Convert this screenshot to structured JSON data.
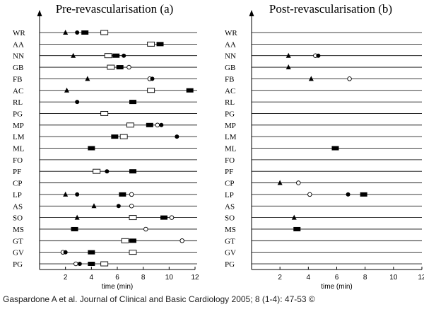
{
  "citation": "Gaspardone A et al. Journal of Clinical and Basic Cardiology 2005; 8 (1-4): 47-53 ©",
  "chart_data": [
    {
      "type": "scatter",
      "title": "Pre-revascularisation (a)",
      "xlabel": "time (min)",
      "xlim": [
        0,
        12
      ],
      "xticks": [
        2,
        4,
        6,
        8,
        10,
        12
      ],
      "marker_kinds": [
        "filled-triangle",
        "filled-circle",
        "open-circle",
        "filled-rectangle",
        "open-rectangle"
      ],
      "rows": [
        {
          "label": "WR",
          "markers": [
            {
              "kind": "filled-triangle",
              "x": 2.0
            },
            {
              "kind": "filled-circle",
              "x": 2.9
            },
            {
              "kind": "filled-rectangle",
              "x": 3.5
            },
            {
              "kind": "open-rectangle",
              "x": 5.0
            }
          ]
        },
        {
          "label": "AA",
          "markers": [
            {
              "kind": "open-rectangle",
              "x": 8.6
            },
            {
              "kind": "filled-rectangle",
              "x": 9.3
            }
          ]
        },
        {
          "label": "NN",
          "markers": [
            {
              "kind": "filled-triangle",
              "x": 2.6
            },
            {
              "kind": "open-rectangle",
              "x": 5.3
            },
            {
              "kind": "filled-rectangle",
              "x": 5.9
            },
            {
              "kind": "filled-circle",
              "x": 6.5
            }
          ]
        },
        {
          "label": "GB",
          "markers": [
            {
              "kind": "open-rectangle",
              "x": 5.5
            },
            {
              "kind": "filled-rectangle",
              "x": 6.2
            },
            {
              "kind": "open-circle",
              "x": 6.9
            }
          ]
        },
        {
          "label": "FB",
          "markers": [
            {
              "kind": "filled-triangle",
              "x": 3.7
            },
            {
              "kind": "open-circle",
              "x": 8.5
            },
            {
              "kind": "filled-circle",
              "x": 8.7
            }
          ]
        },
        {
          "label": "AC",
          "markers": [
            {
              "kind": "filled-triangle",
              "x": 2.1
            },
            {
              "kind": "open-rectangle",
              "x": 8.6
            },
            {
              "kind": "filled-rectangle",
              "x": 11.6
            }
          ]
        },
        {
          "label": "RL",
          "markers": [
            {
              "kind": "filled-circle",
              "x": 2.9
            },
            {
              "kind": "filled-rectangle",
              "x": 7.2
            }
          ]
        },
        {
          "label": "PG",
          "markers": [
            {
              "kind": "open-rectangle",
              "x": 5.0
            }
          ]
        },
        {
          "label": "MP",
          "markers": [
            {
              "kind": "open-rectangle",
              "x": 7.0
            },
            {
              "kind": "filled-rectangle",
              "x": 8.5
            },
            {
              "kind": "open-circle",
              "x": 9.1
            },
            {
              "kind": "filled-circle",
              "x": 9.4
            }
          ]
        },
        {
          "label": "LM",
          "markers": [
            {
              "kind": "filled-rectangle",
              "x": 5.8
            },
            {
              "kind": "open-rectangle",
              "x": 6.5
            },
            {
              "kind": "filled-circle",
              "x": 10.6
            }
          ]
        },
        {
          "label": "ML",
          "markers": [
            {
              "kind": "filled-rectangle",
              "x": 4.0
            }
          ]
        },
        {
          "label": "FO",
          "markers": []
        },
        {
          "label": "PF",
          "markers": [
            {
              "kind": "open-rectangle",
              "x": 4.4
            },
            {
              "kind": "filled-circle",
              "x": 5.2
            },
            {
              "kind": "filled-rectangle",
              "x": 7.2
            }
          ]
        },
        {
          "label": "CP",
          "markers": []
        },
        {
          "label": "LP",
          "markers": [
            {
              "kind": "filled-triangle",
              "x": 2.0
            },
            {
              "kind": "filled-circle",
              "x": 2.9
            },
            {
              "kind": "filled-rectangle",
              "x": 6.4
            },
            {
              "kind": "open-circle",
              "x": 7.1
            }
          ]
        },
        {
          "label": "AS",
          "markers": [
            {
              "kind": "filled-triangle",
              "x": 4.2
            },
            {
              "kind": "filled-circle",
              "x": 6.1
            },
            {
              "kind": "open-circle",
              "x": 7.1
            }
          ]
        },
        {
          "label": "SO",
          "markers": [
            {
              "kind": "filled-triangle",
              "x": 2.9
            },
            {
              "kind": "open-rectangle",
              "x": 7.2
            },
            {
              "kind": "filled-rectangle",
              "x": 9.6
            },
            {
              "kind": "open-circle",
              "x": 10.2
            }
          ]
        },
        {
          "label": "MS",
          "markers": [
            {
              "kind": "filled-rectangle",
              "x": 2.7
            },
            {
              "kind": "open-circle",
              "x": 8.2
            }
          ]
        },
        {
          "label": "GT",
          "markers": [
            {
              "kind": "open-rectangle",
              "x": 6.6
            },
            {
              "kind": "filled-rectangle",
              "x": 7.2
            },
            {
              "kind": "open-circle",
              "x": 11.0
            }
          ]
        },
        {
          "label": "GV",
          "markers": [
            {
              "kind": "open-circle",
              "x": 1.8
            },
            {
              "kind": "filled-circle",
              "x": 2.0
            },
            {
              "kind": "filled-rectangle",
              "x": 4.0
            },
            {
              "kind": "open-rectangle",
              "x": 7.2
            }
          ]
        },
        {
          "label": "PG",
          "markers": [
            {
              "kind": "open-circle",
              "x": 2.8
            },
            {
              "kind": "filled-circle",
              "x": 3.1
            },
            {
              "kind": "filled-rectangle",
              "x": 4.0
            },
            {
              "kind": "open-rectangle",
              "x": 5.0
            }
          ]
        }
      ]
    },
    {
      "type": "scatter",
      "title": "Post-revascularisation (b)",
      "xlabel": "time (min)",
      "xlim": [
        0,
        12
      ],
      "xticks": [
        2,
        4,
        6,
        8,
        10,
        12
      ],
      "marker_kinds": [
        "filled-triangle",
        "filled-circle",
        "open-circle",
        "filled-rectangle",
        "open-rectangle"
      ],
      "rows": [
        {
          "label": "WR",
          "markers": []
        },
        {
          "label": "AA",
          "markers": []
        },
        {
          "label": "NN",
          "markers": [
            {
              "kind": "filled-triangle",
              "x": 2.6
            },
            {
              "kind": "open-circle",
              "x": 4.5
            },
            {
              "kind": "filled-circle",
              "x": 4.7
            }
          ]
        },
        {
          "label": "GB",
          "markers": [
            {
              "kind": "filled-triangle",
              "x": 2.6
            }
          ]
        },
        {
          "label": "FB",
          "markers": [
            {
              "kind": "filled-triangle",
              "x": 4.2
            },
            {
              "kind": "open-circle",
              "x": 6.9
            }
          ]
        },
        {
          "label": "AC",
          "markers": []
        },
        {
          "label": "RL",
          "markers": []
        },
        {
          "label": "PG",
          "markers": []
        },
        {
          "label": "MP",
          "markers": []
        },
        {
          "label": "LM",
          "markers": []
        },
        {
          "label": "ML",
          "markers": [
            {
              "kind": "filled-rectangle",
              "x": 5.9
            }
          ]
        },
        {
          "label": "FO",
          "markers": []
        },
        {
          "label": "PF",
          "markers": []
        },
        {
          "label": "CP",
          "markers": [
            {
              "kind": "filled-triangle",
              "x": 2.0
            },
            {
              "kind": "open-circle",
              "x": 3.3
            }
          ]
        },
        {
          "label": "LP",
          "markers": [
            {
              "kind": "open-circle",
              "x": 4.1
            },
            {
              "kind": "filled-circle",
              "x": 6.8
            },
            {
              "kind": "filled-rectangle",
              "x": 7.9
            }
          ]
        },
        {
          "label": "AS",
          "markers": []
        },
        {
          "label": "SO",
          "markers": [
            {
              "kind": "filled-triangle",
              "x": 3.0
            }
          ]
        },
        {
          "label": "MS",
          "markers": [
            {
              "kind": "filled-rectangle",
              "x": 3.2
            }
          ]
        },
        {
          "label": "GT",
          "markers": []
        },
        {
          "label": "GV",
          "markers": []
        },
        {
          "label": "PG",
          "markers": []
        }
      ]
    }
  ]
}
